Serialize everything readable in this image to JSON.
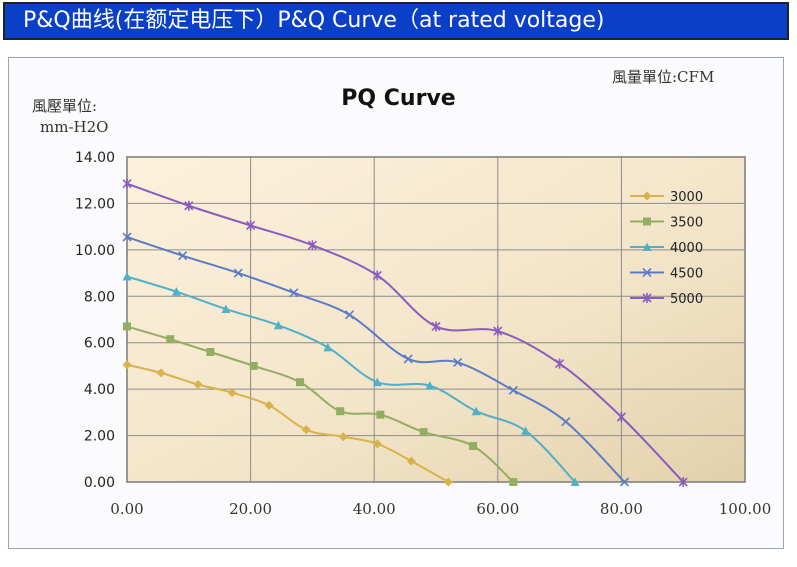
{
  "banner": {
    "title": "P&Q曲线(在额定电压下）P&Q Curve（at rated voltage)"
  },
  "chart_data": {
    "type": "line",
    "title": "PQ Curve",
    "ylabel_line1": "風壓單位:",
    "ylabel_line2": "mm-H2O",
    "xlabel": "風量單位:CFM",
    "xlim": [
      0,
      100
    ],
    "ylim": [
      0,
      14
    ],
    "xticks": [
      "0.00",
      "20.00",
      "40.00",
      "60.00",
      "80.00",
      "100.00"
    ],
    "yticks": [
      "0.00",
      "2.00",
      "4.00",
      "6.00",
      "8.00",
      "10.00",
      "12.00",
      "14.00"
    ],
    "grid": true,
    "legend_position": "right",
    "series": [
      {
        "name": "3000",
        "color": "#d8b24a",
        "marker": "diamond",
        "x": [
          0,
          5.5,
          11.5,
          17,
          23,
          29,
          35,
          40.5,
          46,
          52
        ],
        "y": [
          5.05,
          4.7,
          4.2,
          3.85,
          3.3,
          2.25,
          1.95,
          1.65,
          0.9,
          0
        ]
      },
      {
        "name": "3500",
        "color": "#93ad62",
        "marker": "square",
        "x": [
          0,
          7,
          13.5,
          20.5,
          28,
          34.5,
          41,
          48,
          56,
          62.5
        ],
        "y": [
          6.7,
          6.15,
          5.6,
          5.0,
          4.3,
          3.05,
          2.9,
          2.15,
          1.55,
          0
        ]
      },
      {
        "name": "4000",
        "color": "#4fb0c8",
        "marker": "triangle",
        "x": [
          0,
          8,
          16,
          24.5,
          32.5,
          40.5,
          49,
          56.5,
          64.5,
          72.5
        ],
        "y": [
          8.85,
          8.2,
          7.45,
          6.75,
          5.8,
          4.3,
          4.15,
          3.05,
          2.2,
          0
        ]
      },
      {
        "name": "4500",
        "color": "#5a7cc8",
        "marker": "x",
        "x": [
          0,
          9,
          18,
          27,
          36,
          45.5,
          53.5,
          62.5,
          71,
          80.5
        ],
        "y": [
          10.55,
          9.75,
          9.0,
          8.15,
          7.2,
          5.3,
          5.15,
          3.95,
          2.6,
          0
        ]
      },
      {
        "name": "5000",
        "color": "#8a5cc0",
        "marker": "star",
        "x": [
          0,
          10,
          20,
          30,
          40.5,
          50,
          60,
          70,
          80,
          90
        ],
        "y": [
          12.85,
          11.9,
          11.05,
          10.2,
          8.9,
          6.7,
          6.5,
          5.1,
          2.8,
          0
        ]
      }
    ]
  }
}
